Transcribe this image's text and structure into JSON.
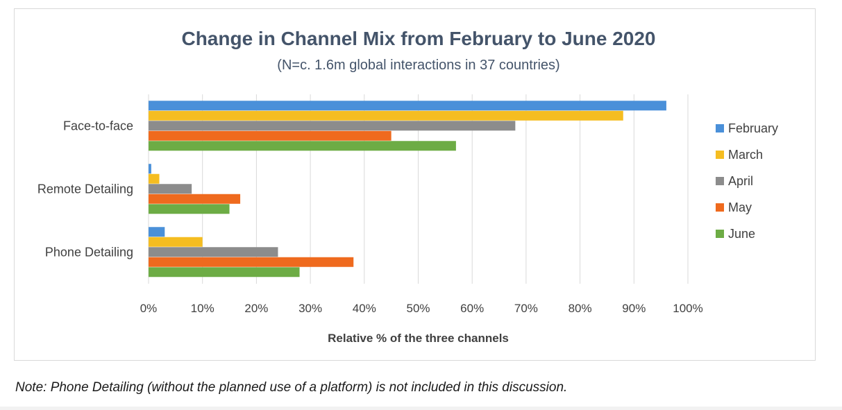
{
  "chart_data": {
    "type": "bar",
    "orientation": "horizontal",
    "title": "Change in Channel Mix from February to June 2020",
    "subtitle": "(N=c. 1.6m global interactions in 37 countries)",
    "xlabel": "Relative % of the three channels",
    "ylabel": "",
    "xlim": [
      0,
      100
    ],
    "x_ticks": [
      "0%",
      "10%",
      "20%",
      "30%",
      "40%",
      "50%",
      "60%",
      "70%",
      "80%",
      "90%",
      "100%"
    ],
    "grid": true,
    "legend_position": "right",
    "categories": [
      "Face-to-face",
      "Remote Detailing",
      "Phone Detailing"
    ],
    "series": [
      {
        "name": "February",
        "color": "#4a90d9",
        "values": [
          96,
          0.5,
          3
        ]
      },
      {
        "name": "March",
        "color": "#f5bd21",
        "values": [
          88,
          2,
          10
        ]
      },
      {
        "name": "April",
        "color": "#8c8c8c",
        "values": [
          68,
          8,
          24
        ]
      },
      {
        "name": "May",
        "color": "#ef6a1e",
        "values": [
          45,
          17,
          38
        ]
      },
      {
        "name": "June",
        "color": "#6dac45",
        "values": [
          57,
          15,
          28
        ]
      }
    ]
  },
  "note": "Note: Phone Detailing (without the planned use of a platform) is not included in this discussion."
}
